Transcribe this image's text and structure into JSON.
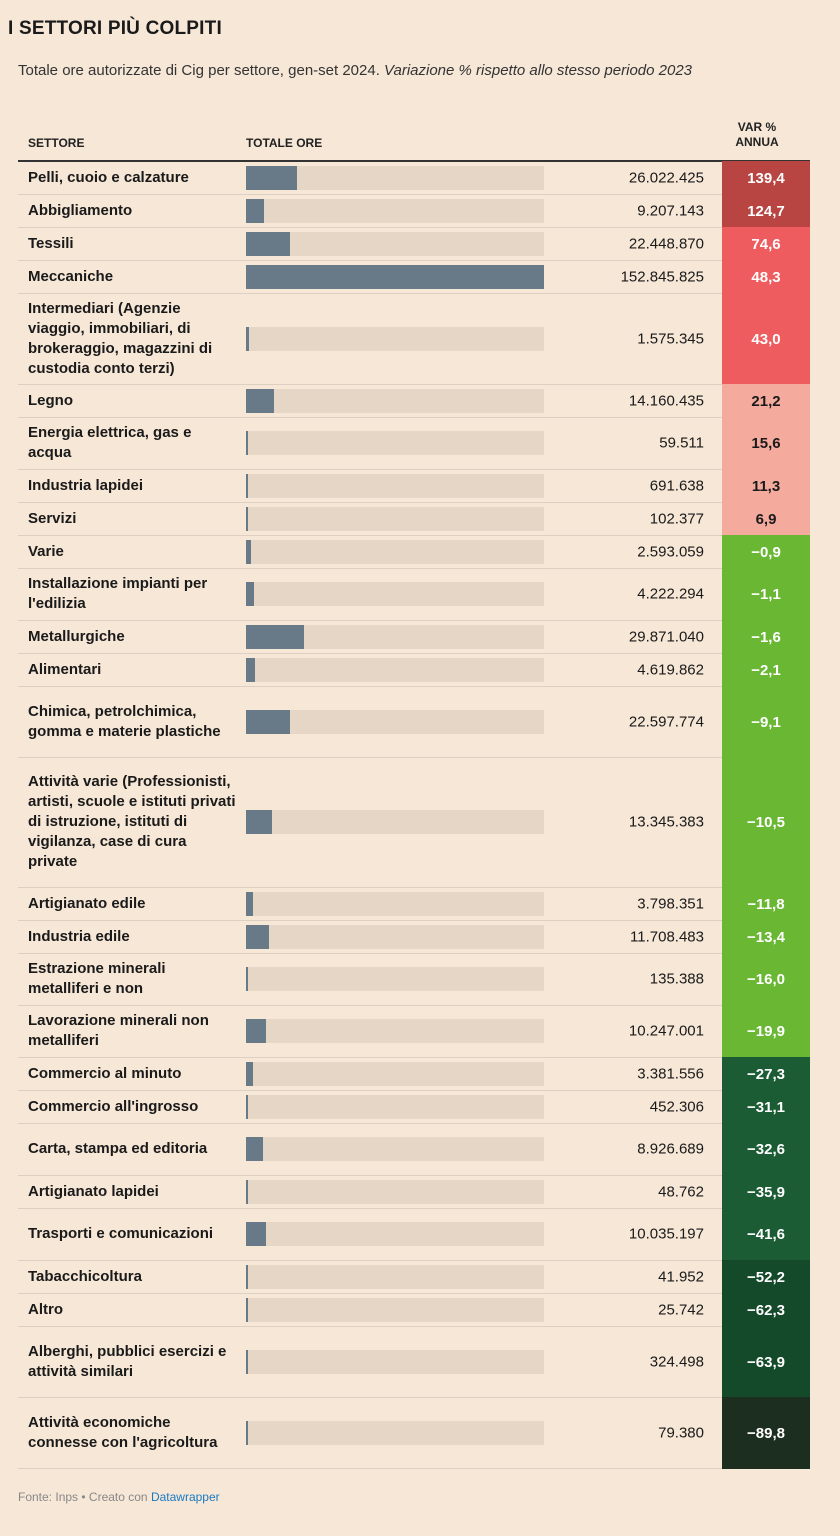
{
  "title": "I SETTORI PIÙ COLPITI",
  "subtitle_main": "Totale ore autorizzate di Cig per settore, gen-set 2024. ",
  "subtitle_italic": "Variazione % rispetto allo stesso periodo 2023",
  "columns": {
    "sector": "SETTORE",
    "total": "TOTALE ORE",
    "var_line1": "VAR %",
    "var_line2": "ANNUA"
  },
  "footer": {
    "source": "Fonte: Inps • Creato con ",
    "tool": "Datawrapper"
  },
  "chart_data": {
    "type": "table",
    "max_total": 152845825,
    "rows": [
      {
        "sector": "Pelli, cuoio e calzature",
        "total": 26022425,
        "total_label": "26.022.425",
        "var": 139.4,
        "var_label": "139,4",
        "color": "#b84542",
        "text_color": "#ffffff"
      },
      {
        "sector": "Abbigliamento",
        "total": 9207143,
        "total_label": "9.207.143",
        "var": 124.7,
        "var_label": "124,7",
        "color": "#b84542",
        "text_color": "#ffffff"
      },
      {
        "sector": "Tessili",
        "total": 22448870,
        "total_label": "22.448.870",
        "var": 74.6,
        "var_label": "74,6",
        "color": "#ef5c5f",
        "text_color": "#ffffff"
      },
      {
        "sector": "Meccaniche",
        "total": 152845825,
        "total_label": "152.845.825",
        "var": 48.3,
        "var_label": "48,3",
        "color": "#ef5c5f",
        "text_color": "#ffffff"
      },
      {
        "sector": "Intermediari (Agenzie viaggio, immobiliari, di brokeraggio, magazzini di custodia conto terzi)",
        "total": 1575345,
        "total_label": "1.575.345",
        "var": 43.0,
        "var_label": "43,0",
        "color": "#ef5c5f",
        "text_color": "#ffffff"
      },
      {
        "sector": "Legno",
        "total": 14160435,
        "total_label": "14.160.435",
        "var": 21.2,
        "var_label": "21,2",
        "color": "#f5aa9e",
        "text_color": "#1a1a1a"
      },
      {
        "sector": "Energia elettrica, gas e acqua",
        "total": 59511,
        "total_label": "59.511",
        "var": 15.6,
        "var_label": "15,6",
        "color": "#f5aa9e",
        "text_color": "#1a1a1a"
      },
      {
        "sector": "Industria lapidei",
        "total": 691638,
        "total_label": "691.638",
        "var": 11.3,
        "var_label": "11,3",
        "color": "#f5aa9e",
        "text_color": "#1a1a1a"
      },
      {
        "sector": "Servizi",
        "total": 102377,
        "total_label": "102.377",
        "var": 6.9,
        "var_label": "6,9",
        "color": "#f5aa9e",
        "text_color": "#1a1a1a"
      },
      {
        "sector": "Varie",
        "total": 2593059,
        "total_label": "2.593.059",
        "var": -0.9,
        "var_label": "−0,9",
        "color": "#6ab734",
        "text_color": "#ffffff"
      },
      {
        "sector": "Installazione impianti per l'edilizia",
        "total": 4222294,
        "total_label": "4.222.294",
        "var": -1.1,
        "var_label": "−1,1",
        "color": "#6ab734",
        "text_color": "#ffffff"
      },
      {
        "sector": "Metallurgiche",
        "total": 29871040,
        "total_label": "29.871.040",
        "var": -1.6,
        "var_label": "−1,6",
        "color": "#6ab734",
        "text_color": "#ffffff"
      },
      {
        "sector": "Alimentari",
        "total": 4619862,
        "total_label": "4.619.862",
        "var": -2.1,
        "var_label": "−2,1",
        "color": "#6ab734",
        "text_color": "#ffffff"
      },
      {
        "sector": "Chimica, petrolchimica, gomma e materie plastiche",
        "total": 22597774,
        "total_label": "22.597.774",
        "var": -9.1,
        "var_label": "−9,1",
        "color": "#6ab734",
        "text_color": "#ffffff"
      },
      {
        "sector": "Attività varie (Professionisti, artisti, scuole e istituti privati di istruzione, istituti di vigilanza, case di cura private",
        "total": 13345383,
        "total_label": "13.345.383",
        "var": -10.5,
        "var_label": "−10,5",
        "color": "#6ab734",
        "text_color": "#ffffff"
      },
      {
        "sector": "Artigianato edile",
        "total": 3798351,
        "total_label": "3.798.351",
        "var": -11.8,
        "var_label": "−11,8",
        "color": "#6ab734",
        "text_color": "#ffffff"
      },
      {
        "sector": "Industria edile",
        "total": 11708483,
        "total_label": "11.708.483",
        "var": -13.4,
        "var_label": "−13,4",
        "color": "#6ab734",
        "text_color": "#ffffff"
      },
      {
        "sector": "Estrazione minerali metalliferi e non",
        "total": 135388,
        "total_label": "135.388",
        "var": -16.0,
        "var_label": "−16,0",
        "color": "#6ab734",
        "text_color": "#ffffff"
      },
      {
        "sector": "Lavorazione minerali non metalliferi",
        "total": 10247001,
        "total_label": "10.247.001",
        "var": -19.9,
        "var_label": "−19,9",
        "color": "#6ab734",
        "text_color": "#ffffff"
      },
      {
        "sector": "Commercio al minuto",
        "total": 3381556,
        "total_label": "3.381.556",
        "var": -27.3,
        "var_label": "−27,3",
        "color": "#1b5c35",
        "text_color": "#ffffff"
      },
      {
        "sector": "Commercio all'ingrosso",
        "total": 452306,
        "total_label": "452.306",
        "var": -31.1,
        "var_label": "−31,1",
        "color": "#1b5c35",
        "text_color": "#ffffff"
      },
      {
        "sector": "Carta, stampa ed editoria",
        "total": 8926689,
        "total_label": "8.926.689",
        "var": -32.6,
        "var_label": "−32,6",
        "color": "#1b5c35",
        "text_color": "#ffffff"
      },
      {
        "sector": "Artigianato lapidei",
        "total": 48762,
        "total_label": "48.762",
        "var": -35.9,
        "var_label": "−35,9",
        "color": "#1b5c35",
        "text_color": "#ffffff"
      },
      {
        "sector": "Trasporti e comunicazioni",
        "total": 10035197,
        "total_label": "10.035.197",
        "var": -41.6,
        "var_label": "−41,6",
        "color": "#1b5c35",
        "text_color": "#ffffff"
      },
      {
        "sector": "Tabacchicoltura",
        "total": 41952,
        "total_label": "41.952",
        "var": -52.2,
        "var_label": "−52,2",
        "color": "#144a2a",
        "text_color": "#ffffff"
      },
      {
        "sector": "Altro",
        "total": 25742,
        "total_label": "25.742",
        "var": -62.3,
        "var_label": "−62,3",
        "color": "#144a2a",
        "text_color": "#ffffff"
      },
      {
        "sector": "Alberghi, pubblici esercizi e attività similari",
        "total": 324498,
        "total_label": "324.498",
        "var": -63.9,
        "var_label": "−63,9",
        "color": "#144a2a",
        "text_color": "#ffffff"
      },
      {
        "sector": "Attività economiche connesse con l'agricoltura",
        "total": 79380,
        "total_label": "79.380",
        "var": -89.8,
        "var_label": "−89,8",
        "color": "#1c2e1f",
        "text_color": "#ffffff"
      }
    ]
  }
}
